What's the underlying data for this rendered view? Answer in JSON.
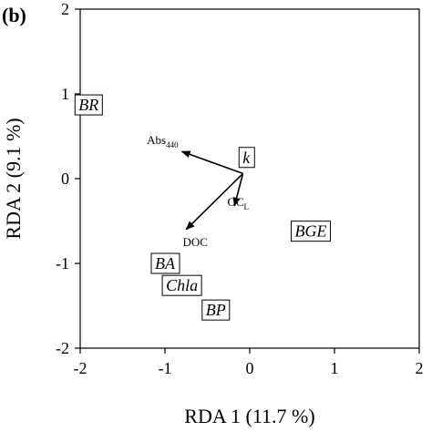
{
  "chart_data": {
    "type": "scatter",
    "panel_label": "(b)",
    "xlabel": "RDA 1 (11.7 %)",
    "ylabel": "RDA 2 (9.1 %)",
    "xlim": [
      -2,
      2
    ],
    "ylim": [
      -2,
      2
    ],
    "xticks": [
      "-2",
      "-1",
      "0",
      "1",
      "2"
    ],
    "yticks": [
      "2",
      "1",
      "0",
      "-1",
      "-2"
    ],
    "sites": [
      {
        "label": "BR",
        "x": -1.9,
        "y": 0.87
      },
      {
        "label": "k",
        "x": -0.04,
        "y": 0.25
      },
      {
        "label": "BGE",
        "x": 0.72,
        "y": -0.62
      },
      {
        "label": "BA",
        "x": -1.0,
        "y": -1.0
      },
      {
        "label": "Chla",
        "x": -0.8,
        "y": -1.26
      },
      {
        "label": "BP",
        "x": -0.4,
        "y": -1.55
      }
    ],
    "arrow_origin": {
      "x": -0.08,
      "y": 0.06
    },
    "vectors": [
      {
        "label": "Abs",
        "subscript": "440",
        "x": -0.8,
        "y": 0.32
      },
      {
        "label": "OC",
        "subscript": "L",
        "x": -0.18,
        "y": -0.32
      },
      {
        "label": "DOC",
        "subscript": "",
        "x": -0.75,
        "y": -0.6
      }
    ]
  }
}
